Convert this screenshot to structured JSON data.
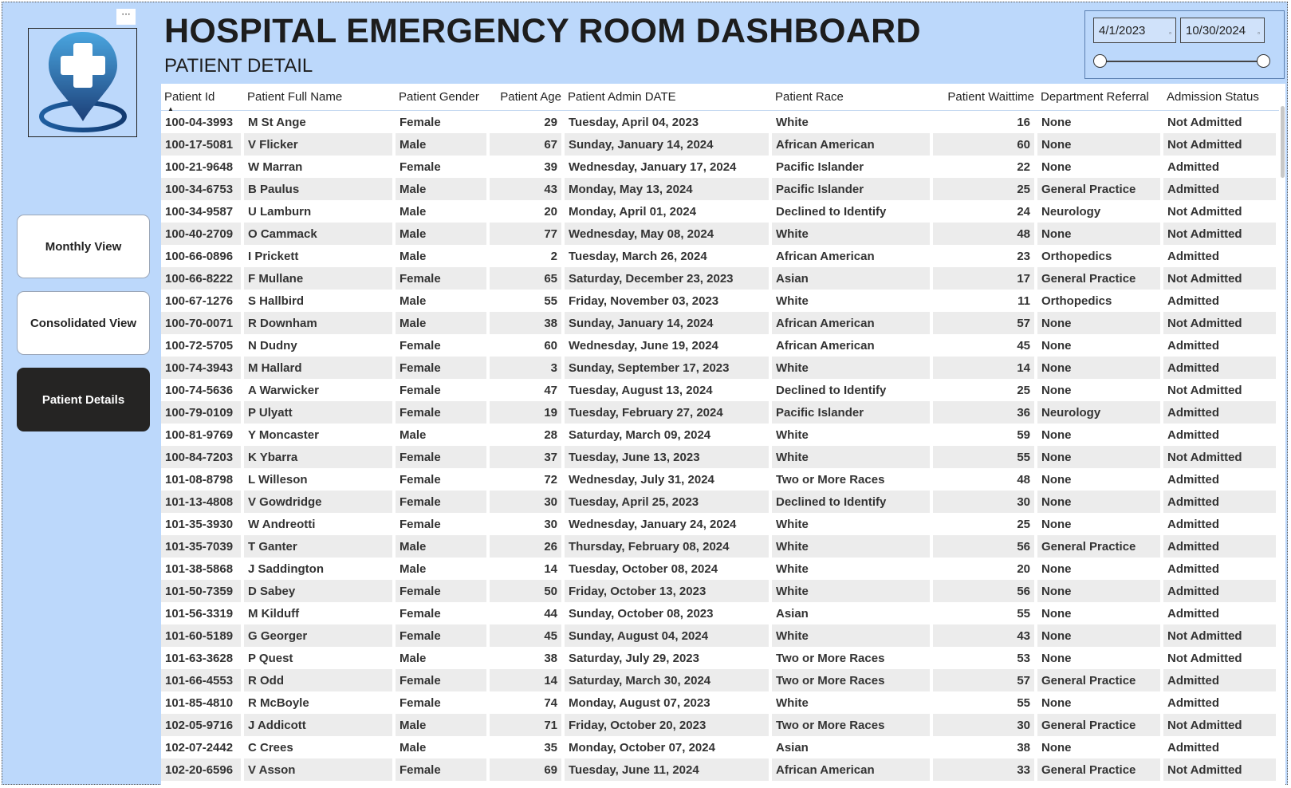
{
  "header": {
    "title": "HOSPITAL EMERGENCY ROOM DASHBOARD",
    "subtitle": "PATIENT DETAIL",
    "menu_dots": "···"
  },
  "nav": {
    "monthly_view": "Monthly View",
    "consolidated_view": "Consolidated View",
    "patient_details": "Patient Details"
  },
  "date_slicer": {
    "start": "4/1/2023",
    "end": "10/30/2024"
  },
  "colors": {
    "background": "#bcd8fb",
    "active_button": "#252423",
    "stripe": "#ececec"
  },
  "table": {
    "columns": [
      "Patient Id",
      "Patient Full Name",
      "Patient Gender",
      "Patient Age",
      "Patient Admin DATE",
      "Patient Race",
      "Patient Waittime",
      "Department Referral",
      "Admission Status"
    ],
    "sorted_by": "Patient Id",
    "rows": [
      [
        "100-04-3993",
        "M St Ange",
        "Female",
        "29",
        "Tuesday, April 04, 2023",
        "White",
        "16",
        "None",
        "Not Admitted"
      ],
      [
        "100-17-5081",
        "V Flicker",
        "Male",
        "67",
        "Sunday, January 14, 2024",
        "African American",
        "60",
        "None",
        "Not Admitted"
      ],
      [
        "100-21-9648",
        "W Marran",
        "Female",
        "39",
        "Wednesday, January 17, 2024",
        "Pacific Islander",
        "22",
        "None",
        "Admitted"
      ],
      [
        "100-34-6753",
        "B Paulus",
        "Male",
        "43",
        "Monday, May 13, 2024",
        "Pacific Islander",
        "25",
        "General Practice",
        "Admitted"
      ],
      [
        "100-34-9587",
        "U Lamburn",
        "Male",
        "20",
        "Monday, April 01, 2024",
        "Declined to Identify",
        "24",
        "Neurology",
        "Not Admitted"
      ],
      [
        "100-40-2709",
        "O Cammack",
        "Male",
        "77",
        "Wednesday, May 08, 2024",
        "White",
        "48",
        "None",
        "Not Admitted"
      ],
      [
        "100-66-0896",
        "I Prickett",
        "Male",
        "2",
        "Tuesday, March 26, 2024",
        "African American",
        "23",
        "Orthopedics",
        "Admitted"
      ],
      [
        "100-66-8222",
        "F Mullane",
        "Female",
        "65",
        "Saturday, December 23, 2023",
        "Asian",
        "17",
        "General Practice",
        "Not Admitted"
      ],
      [
        "100-67-1276",
        "S Hallbird",
        "Male",
        "55",
        "Friday, November 03, 2023",
        "White",
        "11",
        "Orthopedics",
        "Admitted"
      ],
      [
        "100-70-0071",
        "R Downham",
        "Male",
        "38",
        "Sunday, January 14, 2024",
        "African American",
        "57",
        "None",
        "Not Admitted"
      ],
      [
        "100-72-5705",
        "N Dudny",
        "Female",
        "60",
        "Wednesday, June 19, 2024",
        "African American",
        "45",
        "None",
        "Admitted"
      ],
      [
        "100-74-3943",
        "M Hallard",
        "Female",
        "3",
        "Sunday, September 17, 2023",
        "White",
        "14",
        "None",
        "Admitted"
      ],
      [
        "100-74-5636",
        "A Warwicker",
        "Female",
        "47",
        "Tuesday, August 13, 2024",
        "Declined to Identify",
        "25",
        "None",
        "Not Admitted"
      ],
      [
        "100-79-0109",
        "P Ulyatt",
        "Female",
        "19",
        "Tuesday, February 27, 2024",
        "Pacific Islander",
        "36",
        "Neurology",
        "Admitted"
      ],
      [
        "100-81-9769",
        "Y Moncaster",
        "Male",
        "28",
        "Saturday, March 09, 2024",
        "White",
        "59",
        "None",
        "Admitted"
      ],
      [
        "100-84-7203",
        "K Ybarra",
        "Female",
        "37",
        "Tuesday, June 13, 2023",
        "White",
        "55",
        "None",
        "Not Admitted"
      ],
      [
        "101-08-8798",
        "L Willeson",
        "Female",
        "72",
        "Wednesday, July 31, 2024",
        "Two or More Races",
        "48",
        "None",
        "Admitted"
      ],
      [
        "101-13-4808",
        "V Gowdridge",
        "Female",
        "30",
        "Tuesday, April 25, 2023",
        "Declined to Identify",
        "30",
        "None",
        "Admitted"
      ],
      [
        "101-35-3930",
        "W Andreotti",
        "Female",
        "30",
        "Wednesday, January 24, 2024",
        "White",
        "25",
        "None",
        "Admitted"
      ],
      [
        "101-35-7039",
        "T Ganter",
        "Male",
        "26",
        "Thursday, February 08, 2024",
        "White",
        "56",
        "General Practice",
        "Admitted"
      ],
      [
        "101-38-5868",
        "J Saddington",
        "Male",
        "14",
        "Tuesday, October 08, 2024",
        "White",
        "20",
        "None",
        "Admitted"
      ],
      [
        "101-50-7359",
        "D Sabey",
        "Female",
        "50",
        "Friday, October 13, 2023",
        "White",
        "56",
        "None",
        "Admitted"
      ],
      [
        "101-56-3319",
        "M Kilduff",
        "Female",
        "44",
        "Sunday, October 08, 2023",
        "Asian",
        "55",
        "None",
        "Admitted"
      ],
      [
        "101-60-5189",
        "G Georger",
        "Female",
        "45",
        "Sunday, August 04, 2024",
        "White",
        "43",
        "None",
        "Not Admitted"
      ],
      [
        "101-63-3628",
        "P Quest",
        "Male",
        "38",
        "Saturday, July 29, 2023",
        "Two or More Races",
        "53",
        "None",
        "Not Admitted"
      ],
      [
        "101-66-4553",
        "R Odd",
        "Female",
        "14",
        "Saturday, March 30, 2024",
        "Two or More Races",
        "57",
        "General Practice",
        "Admitted"
      ],
      [
        "101-85-4810",
        "R McBoyle",
        "Female",
        "74",
        "Monday, August 07, 2023",
        "White",
        "55",
        "None",
        "Admitted"
      ],
      [
        "102-05-9716",
        "J Addicott",
        "Male",
        "71",
        "Friday, October 20, 2023",
        "Two or More Races",
        "30",
        "General Practice",
        "Not Admitted"
      ],
      [
        "102-07-2442",
        "C Crees",
        "Male",
        "35",
        "Monday, October 07, 2024",
        "Asian",
        "38",
        "None",
        "Admitted"
      ],
      [
        "102-20-6596",
        "V Asson",
        "Female",
        "69",
        "Tuesday, June 11, 2024",
        "African American",
        "33",
        "General Practice",
        "Not Admitted"
      ]
    ]
  }
}
